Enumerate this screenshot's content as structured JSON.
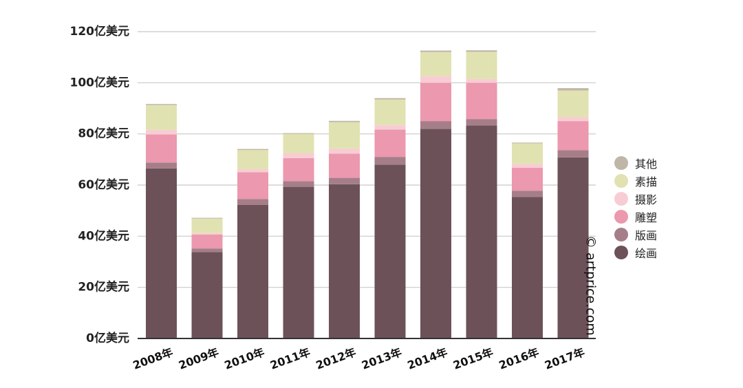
{
  "chart_data": {
    "type": "bar",
    "stacked": true,
    "categories": [
      "2008年",
      "2009年",
      "2010年",
      "2011年",
      "2012年",
      "2013年",
      "2014年",
      "2015年",
      "2016年",
      "2017年"
    ],
    "series": [
      {
        "name": "绘画",
        "color": "#6d5158",
        "values": [
          66.5,
          33.8,
          52.2,
          59.3,
          60.3,
          68.0,
          82.0,
          83.3,
          55.3,
          70.8
        ]
      },
      {
        "name": "版画",
        "color": "#a57e89",
        "values": [
          2.3,
          1.4,
          2.3,
          2.2,
          2.5,
          3.0,
          3.0,
          2.5,
          2.5,
          2.8
        ]
      },
      {
        "name": "雕塑",
        "color": "#ec98ae",
        "values": [
          11.0,
          5.5,
          10.5,
          9.0,
          9.5,
          10.7,
          15.0,
          14.2,
          9.0,
          11.4
        ]
      },
      {
        "name": "摄影",
        "color": "#f7cdd3",
        "values": [
          1.8,
          0.5,
          1.2,
          2.0,
          2.0,
          1.8,
          2.6,
          1.5,
          1.5,
          1.6
        ]
      },
      {
        "name": "素描",
        "color": "#e1e2b1",
        "values": [
          9.7,
          5.7,
          7.5,
          7.5,
          10.3,
          10.0,
          9.4,
          10.6,
          8.0,
          10.4
        ]
      },
      {
        "name": "其他",
        "color": "#bfb6a8",
        "values": [
          0.4,
          0.3,
          0.4,
          0.3,
          0.5,
          0.5,
          0.6,
          0.6,
          0.3,
          0.9
        ]
      }
    ],
    "yticks": [
      "0亿美元",
      "20亿美元",
      "40亿美元",
      "60亿美元",
      "80亿美元",
      "100亿美元",
      "120亿美元"
    ],
    "ytick_values": [
      0,
      20,
      40,
      60,
      80,
      100,
      120
    ],
    "ylim": [
      0,
      120
    ],
    "legend_position": "right",
    "grid": true,
    "credit": "© artprice.com"
  }
}
